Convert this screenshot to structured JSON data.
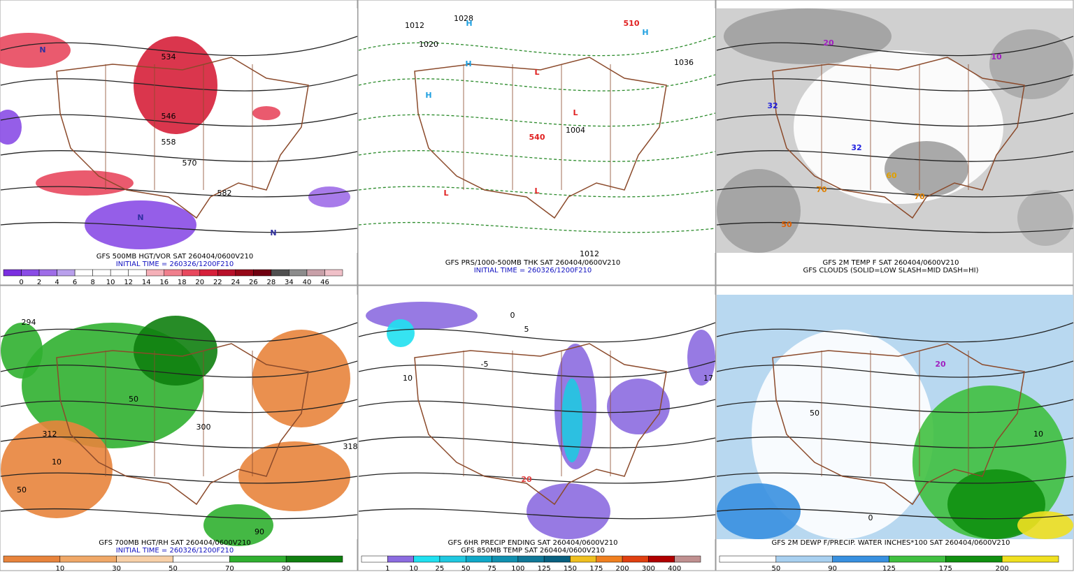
{
  "panels": [
    {
      "caption": [
        "GFS 500MB HGT/VOR SAT 260404/0600V210",
        "INITIAL TIME = 260326/1200F210"
      ],
      "colorbar": {
        "labels": [
          0,
          2,
          4,
          6,
          8,
          10,
          12,
          14,
          16,
          18,
          20,
          22,
          24,
          26,
          28,
          34,
          40,
          46
        ],
        "colors": [
          "#7b2fe0",
          "#8a4ce6",
          "#9f6de8",
          "#b9a0ec",
          "#ffffff",
          "#ffffff",
          "#ffffff",
          "#ffffff",
          "#f5b0b8",
          "#f07f8d",
          "#e8485e",
          "#d6203a",
          "#b8102a",
          "#960818",
          "#700010",
          "#505050",
          "#8c8c8c",
          "#c8a0a8",
          "#f0c0c8"
        ]
      },
      "map_labels": [
        "534",
        "546",
        "558",
        "570",
        "582",
        "N",
        "N",
        "N"
      ]
    },
    {
      "caption": [
        "GFS PRS/1000-500MB THK SAT 260404/0600V210",
        "INITIAL TIME = 260326/1200F210"
      ],
      "map_labels": [
        "1012",
        "1028",
        "H",
        "H",
        "1020",
        "H",
        "L",
        "L",
        "1004",
        "540",
        "L",
        "L",
        "1012",
        "510",
        "1036",
        "H"
      ]
    },
    {
      "caption": [
        "GFS 2M TEMP F SAT 260404/0600V210",
        "GFS CLOUDS (SOLID=LOW SLASH=MID DASH=HI)"
      ],
      "map_labels": [
        "20",
        "32",
        "32",
        "60",
        "70",
        "50",
        "10",
        "70"
      ]
    },
    {
      "caption": [
        "GFS 700MB HGT/RH SAT 260404/0600V210",
        "INITIAL TIME = 260326/1200F210"
      ],
      "colorbar": {
        "labels": [
          10,
          30,
          50,
          70,
          90
        ],
        "colors": [
          "#e8843c",
          "#f0a868",
          "#f8d0a8",
          "#ffffff",
          "#30b030",
          "#108010"
        ]
      },
      "map_labels": [
        "294",
        "50",
        "312",
        "10",
        "50",
        "300",
        "318",
        "90"
      ]
    },
    {
      "caption": [
        "GFS 6HR PRECIP ENDING SAT 260404/0600V210",
        "GFS 850MB TEMP SAT 260404/0600V210"
      ],
      "colorbar": {
        "labels": [
          1,
          10,
          25,
          50,
          75,
          100,
          125,
          150,
          175,
          200,
          300,
          400
        ],
        "colors": [
          "#ffffff",
          "#8c6ce0",
          "#20e0f0",
          "#20c8e0",
          "#10a8c8",
          "#1090b0",
          "#107898",
          "#086080",
          "#f0c020",
          "#f08020",
          "#e04010",
          "#b00000",
          "#c09090"
        ]
      },
      "map_labels": [
        "0",
        "5",
        "10",
        "20",
        "-5",
        "17"
      ]
    },
    {
      "caption": [
        "GFS 2M DEWP F/PRECIP. WATER INCHES*100 SAT 260404/0600V210"
      ],
      "colorbar": {
        "labels": [
          50,
          90,
          125,
          175,
          200
        ],
        "colors": [
          "#ffffff",
          "#a8d0f0",
          "#3890e0",
          "#40c040",
          "#109010",
          "#f0e020"
        ]
      },
      "map_labels": [
        "20",
        "50",
        "10",
        "0"
      ]
    }
  ]
}
